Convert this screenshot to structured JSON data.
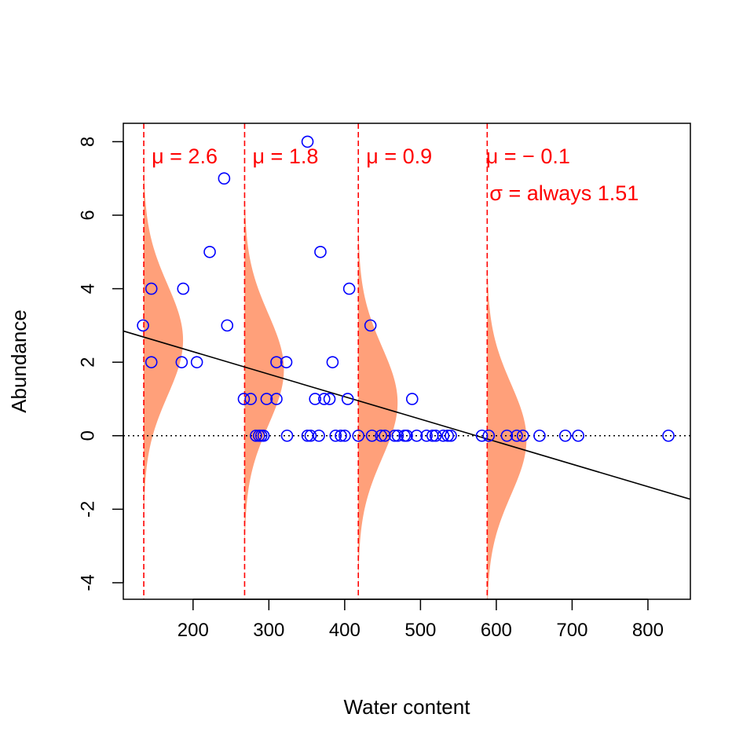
{
  "chart_data": {
    "type": "scatter",
    "title": "",
    "xlabel": "Water content",
    "ylabel": "Abundance",
    "xlim": [
      108,
      856
    ],
    "ylim": [
      -4.45,
      8.5
    ],
    "x_ticks": [
      200,
      300,
      400,
      500,
      600,
      700,
      800
    ],
    "y_ticks": [
      -4,
      -2,
      0,
      2,
      4,
      6,
      8
    ],
    "grid": false,
    "legend": "none",
    "colors": {
      "points": "#0000ff",
      "regression": "#000000",
      "mean_lines": "#ff0000",
      "densities": "#ffa07a",
      "annotations": "#ff0000",
      "zero_line": "#000000"
    },
    "points": [
      {
        "x": 134,
        "y": 3
      },
      {
        "x": 145,
        "y": 4
      },
      {
        "x": 145,
        "y": 2
      },
      {
        "x": 185,
        "y": 2
      },
      {
        "x": 187,
        "y": 4
      },
      {
        "x": 205,
        "y": 2
      },
      {
        "x": 222,
        "y": 5
      },
      {
        "x": 241,
        "y": 7
      },
      {
        "x": 245,
        "y": 3
      },
      {
        "x": 267,
        "y": 1
      },
      {
        "x": 276,
        "y": 1
      },
      {
        "x": 283,
        "y": 0
      },
      {
        "x": 287,
        "y": 0
      },
      {
        "x": 290,
        "y": 0
      },
      {
        "x": 293,
        "y": 0
      },
      {
        "x": 297,
        "y": 1
      },
      {
        "x": 310,
        "y": 1
      },
      {
        "x": 310,
        "y": 2
      },
      {
        "x": 323,
        "y": 2
      },
      {
        "x": 324,
        "y": 0
      },
      {
        "x": 351,
        "y": 8
      },
      {
        "x": 351,
        "y": 0
      },
      {
        "x": 355,
        "y": 0
      },
      {
        "x": 361,
        "y": 1
      },
      {
        "x": 366,
        "y": 0
      },
      {
        "x": 368,
        "y": 5
      },
      {
        "x": 373,
        "y": 1
      },
      {
        "x": 380,
        "y": 1
      },
      {
        "x": 384,
        "y": 2
      },
      {
        "x": 388,
        "y": 0
      },
      {
        "x": 395,
        "y": 0
      },
      {
        "x": 400,
        "y": 0
      },
      {
        "x": 404,
        "y": 1
      },
      {
        "x": 406,
        "y": 4
      },
      {
        "x": 418,
        "y": 0
      },
      {
        "x": 434,
        "y": 3
      },
      {
        "x": 436,
        "y": 0
      },
      {
        "x": 448,
        "y": 0
      },
      {
        "x": 453,
        "y": 0
      },
      {
        "x": 466,
        "y": 0
      },
      {
        "x": 470,
        "y": 0
      },
      {
        "x": 479,
        "y": 0
      },
      {
        "x": 482,
        "y": 0
      },
      {
        "x": 489,
        "y": 1
      },
      {
        "x": 495,
        "y": 0
      },
      {
        "x": 508,
        "y": 0
      },
      {
        "x": 516,
        "y": 0
      },
      {
        "x": 520,
        "y": 0
      },
      {
        "x": 530,
        "y": 0
      },
      {
        "x": 536,
        "y": 0
      },
      {
        "x": 540,
        "y": 0
      },
      {
        "x": 581,
        "y": 0
      },
      {
        "x": 590,
        "y": 0
      },
      {
        "x": 614,
        "y": 0
      },
      {
        "x": 627,
        "y": 0
      },
      {
        "x": 635,
        "y": 0
      },
      {
        "x": 657,
        "y": 0
      },
      {
        "x": 691,
        "y": 0
      },
      {
        "x": 708,
        "y": 0
      },
      {
        "x": 827,
        "y": 0
      }
    ],
    "regression_line": {
      "intercept": 3.51,
      "slope": -0.00612
    },
    "zero_line_y": 0,
    "normal_curves": [
      {
        "x": 135,
        "mu": 2.6,
        "label": "μ = 2.6"
      },
      {
        "x": 268,
        "mu": 1.8,
        "label": "μ = 1.8"
      },
      {
        "x": 418,
        "mu": 0.9,
        "label": "μ = 0.9"
      },
      {
        "x": 588,
        "mu": -0.1,
        "label": "μ = − 0.1"
      }
    ],
    "sigma": 1.51,
    "sigma_label": "σ = always 1.51"
  }
}
